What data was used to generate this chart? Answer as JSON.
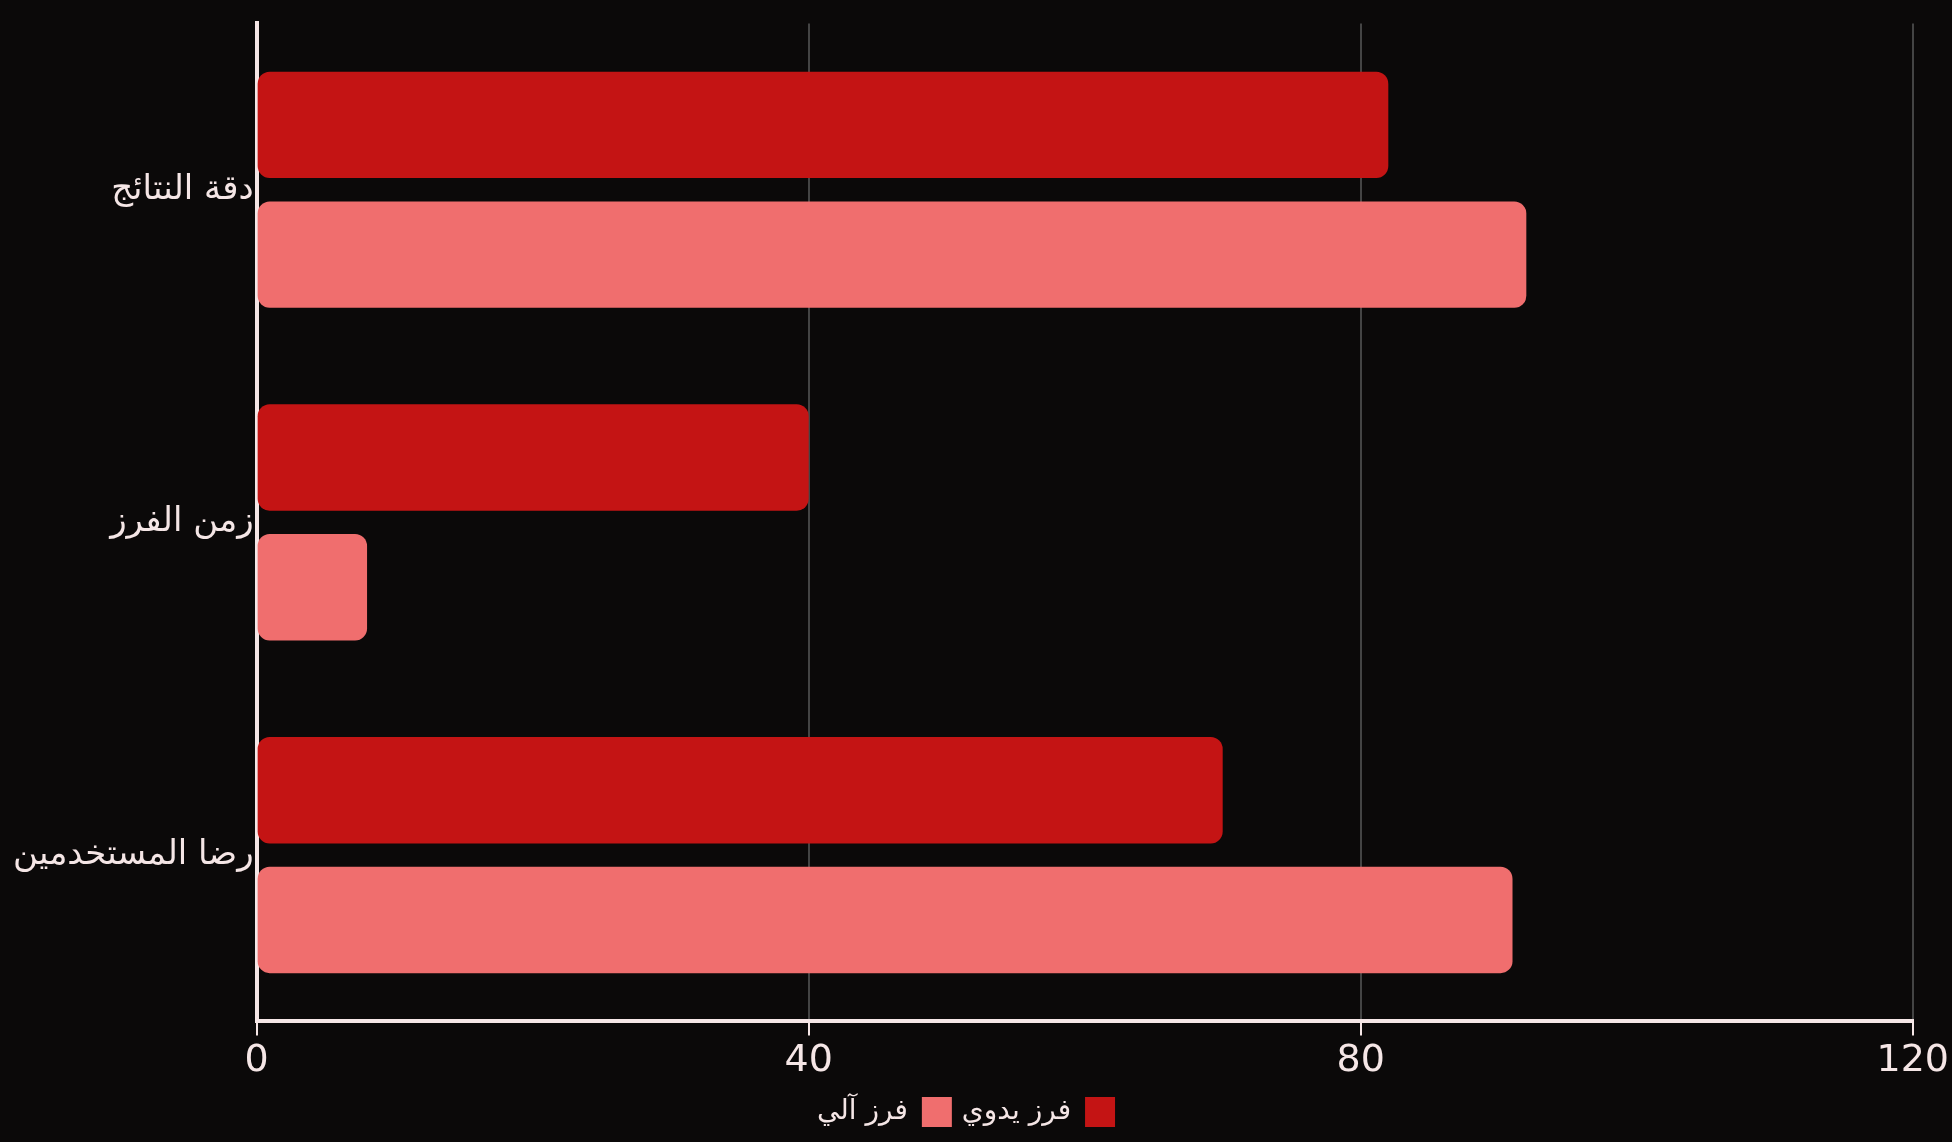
{
  "chart_data": {
    "type": "bar",
    "orientation": "horizontal",
    "categories": [
      "دقة النتائج",
      "زمن الفرز",
      "رضا المستخدمين"
    ],
    "series": [
      {
        "name": "فرز يدوي",
        "color": "#c41414",
        "values": [
          82,
          40,
          70
        ]
      },
      {
        "name": "فرز آلي",
        "color": "#f06e6e",
        "values": [
          92,
          8,
          91
        ]
      }
    ],
    "xlim": [
      0,
      120
    ],
    "xticks": [
      0,
      40,
      80,
      120
    ],
    "grid": "x",
    "legend": "bottom"
  }
}
